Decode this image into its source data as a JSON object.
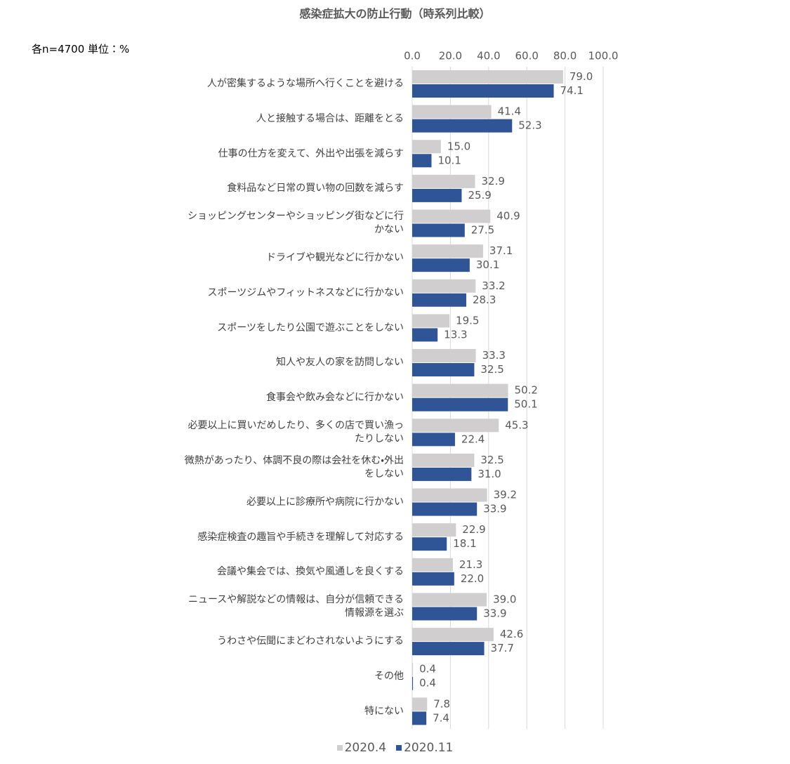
{
  "chart_data": {
    "type": "bar",
    "orientation": "horizontal",
    "title": "感染症拡大の防止行動（時系列比較）",
    "note": "各n=4700  単位：%",
    "categories": [
      "人が密集するような場所へ行くことを避ける",
      "人と接触する場合は、距離をとる",
      "仕事の仕方を変えて、外出や出張を減らす",
      "食料品など日常の買い物の回数を減らす",
      "ショッピングセンターやショッピング街などに行かない",
      "ドライブや観光などに行かない",
      "スポーツジムやフィットネスなどに行かない",
      "スポーツをしたり公園で遊ぶことをしない",
      "知人や友人の家を訪問しない",
      "食事会や飲み会などに行かない",
      "必要以上に買いだめしたり、多くの店で買い漁ったりしない",
      "微熱があったり、体調不良の際は会社を休む・外出をしない",
      "必要以上に診療所や病院に行かない",
      "感染症検査の趣旨や手続きを理解して対応する",
      "会議や集会では、換気や風通しを良くする",
      "ニュースや解説などの情報は、自分が信頼できる情報源を選ぶ",
      "うわさや伝聞にまどわされないようにする",
      "その他",
      "特にない"
    ],
    "series": [
      {
        "name": "2020.4",
        "color": "#d0cece",
        "values": [
          79.0,
          41.4,
          15.0,
          32.9,
          40.9,
          37.1,
          33.2,
          19.5,
          33.3,
          50.2,
          45.3,
          32.5,
          39.2,
          22.9,
          21.3,
          39.0,
          42.6,
          0.4,
          7.8
        ],
        "value_labels": [
          "79.0",
          "41.4",
          "15.0",
          "32.9",
          "40.9",
          "37.1",
          "33.2",
          "19.5",
          "33.3",
          "50.2",
          "45.3",
          "32.5",
          "39.2",
          "22.9",
          "21.3",
          "39.0",
          "42.6",
          "0.4",
          "7.8"
        ]
      },
      {
        "name": "2020.11",
        "color": "#2f5597",
        "values": [
          74.1,
          52.3,
          10.1,
          25.9,
          27.5,
          30.1,
          28.3,
          13.3,
          32.5,
          50.1,
          22.4,
          31.0,
          33.9,
          18.1,
          22.0,
          33.9,
          37.7,
          0.4,
          7.4
        ],
        "value_labels": [
          "74.1",
          "52.3",
          "10.1",
          "25.9",
          "27.5",
          "30.1",
          "28.3",
          "13.3",
          "32.5",
          "50.1",
          "22.4",
          "31.0",
          "33.9",
          "18.1",
          "22.0",
          "33.9",
          "37.7",
          "0.4",
          "7.4"
        ]
      }
    ],
    "xlim": [
      0,
      100
    ],
    "xticks": [
      {
        "value": 0,
        "label": "0.0"
      },
      {
        "value": 20,
        "label": "20.0"
      },
      {
        "value": 40,
        "label": "40.0"
      },
      {
        "value": 60,
        "label": "60.0"
      },
      {
        "value": 80,
        "label": "80.0"
      },
      {
        "value": 100,
        "label": "100.0"
      }
    ],
    "grid": true,
    "legend": "bottom"
  }
}
